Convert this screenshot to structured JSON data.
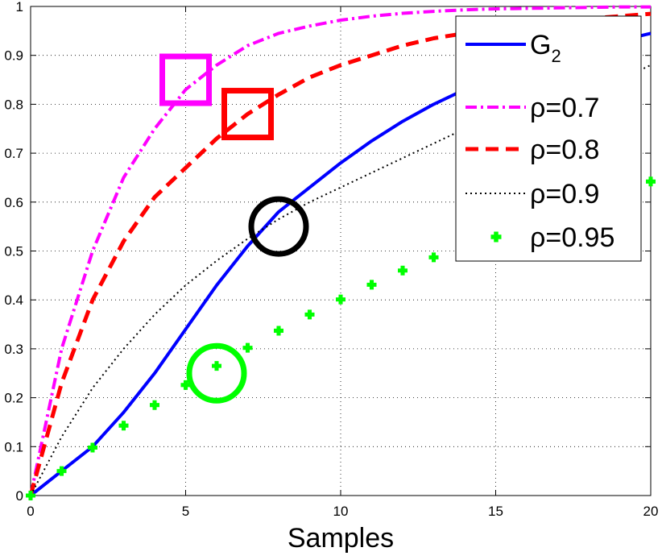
{
  "chart_data": {
    "type": "line",
    "title": "",
    "xlabel": "Samples",
    "ylabel": "",
    "xlim": [
      0,
      20
    ],
    "ylim": [
      0,
      1
    ],
    "grid": true,
    "legend_position": "top-right",
    "x_ticks": [
      "0",
      "5",
      "10",
      "15",
      "20"
    ],
    "y_ticks": [
      "0",
      "0.1",
      "0.2",
      "0.3",
      "0.4",
      "0.5",
      "0.6",
      "0.7",
      "0.8",
      "0.9",
      "1"
    ],
    "x": [
      0,
      1,
      2,
      3,
      4,
      5,
      6,
      7,
      8,
      9,
      10,
      11,
      12,
      13,
      14,
      15,
      16,
      17,
      18,
      19,
      20
    ],
    "series": [
      {
        "name": "G",
        "name_subscript": "2",
        "color": "#0000ff",
        "style": "solid",
        "values": [
          0.0,
          0.05,
          0.1,
          0.17,
          0.25,
          0.34,
          0.43,
          0.51,
          0.58,
          0.63,
          0.68,
          0.725,
          0.765,
          0.8,
          0.83,
          0.855,
          0.875,
          0.895,
          0.915,
          0.93,
          0.945
        ]
      },
      {
        "name": "ρ=0.7",
        "color": "#ff00ff",
        "style": "dashdot",
        "values": [
          0.0,
          0.3,
          0.5,
          0.65,
          0.75,
          0.83,
          0.88,
          0.92,
          0.945,
          0.96,
          0.972,
          0.98,
          0.986,
          0.99,
          0.993,
          0.995,
          0.996,
          0.997,
          0.998,
          0.999,
          0.999
        ]
      },
      {
        "name": "ρ=0.8",
        "color": "#ff0000",
        "style": "dashed",
        "values": [
          0.0,
          0.23,
          0.4,
          0.52,
          0.61,
          0.67,
          0.73,
          0.78,
          0.82,
          0.855,
          0.88,
          0.9,
          0.92,
          0.935,
          0.945,
          0.955,
          0.963,
          0.97,
          0.975,
          0.98,
          0.985
        ]
      },
      {
        "name": "ρ=0.9",
        "color": "#000000",
        "style": "dotted",
        "values": [
          0.0,
          0.12,
          0.22,
          0.3,
          0.37,
          0.43,
          0.48,
          0.525,
          0.565,
          0.6,
          0.63,
          0.66,
          0.69,
          0.72,
          0.75,
          0.77,
          0.79,
          0.81,
          0.83,
          0.85,
          0.88
        ]
      },
      {
        "name": "ρ=0.95",
        "color": "#00ff00",
        "style": "markers",
        "values": [
          0.0,
          0.05,
          0.098,
          0.143,
          0.185,
          0.226,
          0.265,
          0.302,
          0.337,
          0.37,
          0.401,
          0.431,
          0.46,
          0.487,
          0.512,
          0.537,
          0.56,
          0.582,
          0.603,
          0.623,
          0.642
        ]
      }
    ],
    "annotations": [
      {
        "shape": "square",
        "color": "#ff00ff",
        "x": 5,
        "y": 0.85
      },
      {
        "shape": "square",
        "color": "#ff0000",
        "x": 7,
        "y": 0.78
      },
      {
        "shape": "circle",
        "color": "#000000",
        "x": 8,
        "y": 0.55
      },
      {
        "shape": "circle",
        "color": "#00ff00",
        "x": 6,
        "y": 0.25
      }
    ]
  }
}
